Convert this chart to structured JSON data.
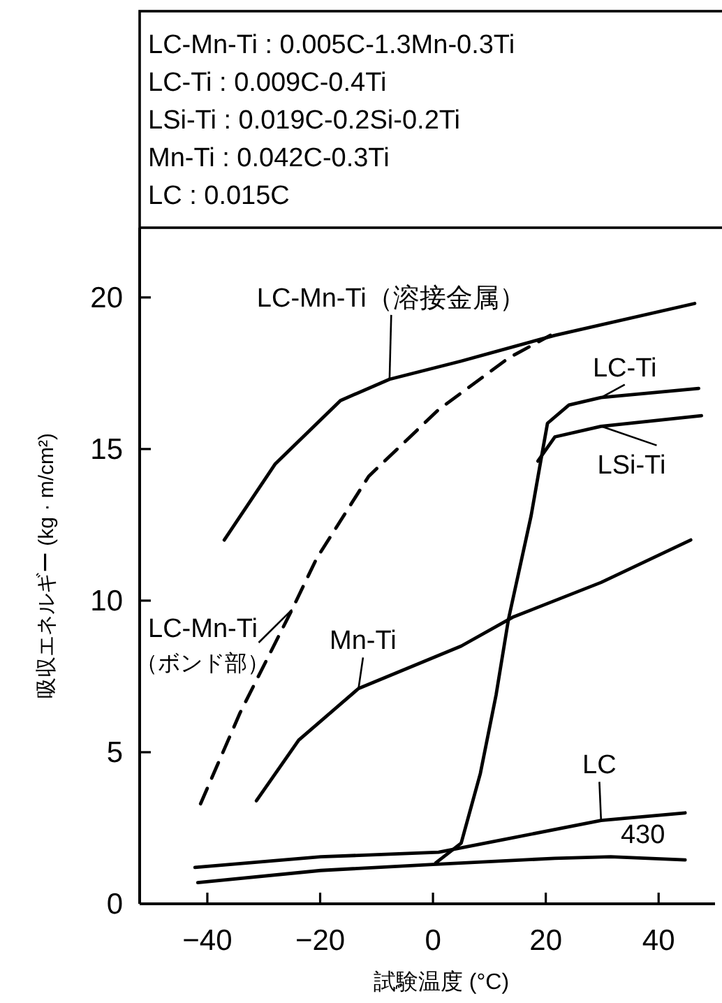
{
  "chart_data": {
    "type": "line",
    "xlabel": "試験温度 (°C)",
    "ylabel": "吸収エネルギー (kg · m/cm²)",
    "xlim": [
      -52,
      50
    ],
    "ylim": [
      0,
      22.3
    ],
    "xticks": [
      -40,
      -20,
      0,
      20,
      40
    ],
    "yticks": [
      0,
      5,
      10,
      15,
      20
    ],
    "annotations": [
      "LC-Mn-Ti : 0.005C-1.3Mn-0.3Ti",
      "LC-Ti : 0.009C-0.4Ti",
      "LSi-Ti : 0.019C-0.2Si-0.2Ti",
      "Mn-Ti : 0.042C-0.3Ti",
      "LC : 0.015C"
    ],
    "series": [
      {
        "name": "LC-Mn-Ti（溶接金属）",
        "color": "#000000",
        "line_style": "solid",
        "x": [
          -37,
          -28,
          -16.4,
          -7.7,
          5,
          21.6,
          46.4
        ],
        "values": [
          12.0,
          14.5,
          16.6,
          17.3,
          17.9,
          18.75,
          19.8
        ]
      },
      {
        "name": "LC-Mn-Ti（ボンド部）",
        "color": "#000000",
        "line_style": "dashed",
        "x": [
          -41.2,
          -34.2,
          -25,
          -20.6,
          -11.4,
          1,
          13.4,
          20.8
        ],
        "values": [
          3.3,
          6.3,
          9.7,
          11.4,
          14.1,
          16.3,
          18.0,
          18.75
        ]
      },
      {
        "name": "LC-Ti",
        "color": "#000000",
        "line_style": "solid",
        "x": [
          0.5,
          5,
          8.4,
          11.2,
          13.4,
          17.4,
          19.1,
          20.3,
          24.1,
          29.8,
          47.1
        ],
        "values": [
          1.35,
          2.0,
          4.3,
          6.9,
          9.4,
          12.8,
          14.6,
          15.85,
          16.45,
          16.7,
          17.0
        ]
      },
      {
        "name": "LSi-Ti",
        "color": "#000000",
        "line_style": "solid",
        "x": [
          18.6,
          21.6,
          29.8,
          47.6
        ],
        "values": [
          14.6,
          15.4,
          15.75,
          16.1
        ]
      },
      {
        "name": "Mn-Ti",
        "color": "#000000",
        "line_style": "solid",
        "x": [
          -31.3,
          -23.8,
          -13.2,
          5,
          14.1,
          29.8,
          45.7
        ],
        "values": [
          3.4,
          5.4,
          7.1,
          8.5,
          9.45,
          10.6,
          12.0
        ]
      },
      {
        "name": "LC",
        "color": "#000000",
        "line_style": "solid",
        "x": [
          -42.2,
          -19.9,
          1,
          13.4,
          29.8,
          44.7
        ],
        "values": [
          1.2,
          1.55,
          1.7,
          2.15,
          2.75,
          3.0
        ]
      },
      {
        "name": "430",
        "color": "#000000",
        "line_style": "solid",
        "x": [
          -41.7,
          -19.9,
          0,
          21.6,
          31.5,
          44.7
        ],
        "values": [
          0.7,
          1.1,
          1.3,
          1.5,
          1.55,
          1.45
        ]
      }
    ]
  }
}
